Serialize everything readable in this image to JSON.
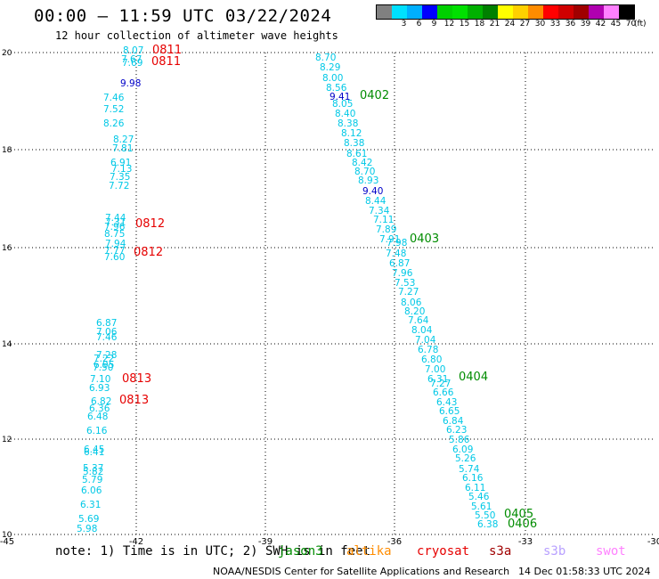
{
  "header": {
    "title": "00:00 – 11:59 UTC 03/22/2024",
    "subtitle": "12 hour collection of altimeter wave heights"
  },
  "legend": {
    "unit": "(ft)",
    "items": [
      {
        "label": "",
        "color": "#808080"
      },
      {
        "label": "3",
        "color": "#00e0ff"
      },
      {
        "label": "6",
        "color": "#00b0ff"
      },
      {
        "label": "9",
        "color": "#0000ff"
      },
      {
        "label": "12",
        "color": "#00d000"
      },
      {
        "label": "15",
        "color": "#00e000"
      },
      {
        "label": "18",
        "color": "#00b000"
      },
      {
        "label": "21",
        "color": "#008000"
      },
      {
        "label": "24",
        "color": "#ffff00"
      },
      {
        "label": "27",
        "color": "#ffd000"
      },
      {
        "label": "30",
        "color": "#ff8c00"
      },
      {
        "label": "33",
        "color": "#ff0000"
      },
      {
        "label": "36",
        "color": "#d00000"
      },
      {
        "label": "39",
        "color": "#a00000"
      },
      {
        "label": "42",
        "color": "#b000b0"
      },
      {
        "label": "45",
        "color": "#ff80ff"
      },
      {
        "label": "70",
        "color": "#000000"
      }
    ]
  },
  "map": {
    "x_ticks": [
      "-45",
      "-42",
      "-39",
      "-36",
      "-33",
      "-30"
    ],
    "y_ticks": [
      "20",
      "18",
      "16",
      "14",
      "12",
      "10"
    ],
    "colors": {
      "cyan": "#00c8e6",
      "blue": "#0000c8",
      "red": "#e60000",
      "green": "#008c00"
    },
    "track_a": {
      "values": [
        "8.07",
        "7.67",
        "7.69",
        "9.98",
        "7.46",
        "7.52",
        "8.26",
        "8.27",
        "7.81",
        "6.91",
        "7.13",
        "7.35",
        "7.72",
        "7.44",
        "7.31",
        "7.96",
        "8.75",
        "7.94",
        "7.77",
        "7.60",
        "6.87",
        "7.06",
        "7.46",
        "7.28",
        "7.22",
        "6.95",
        "7.50",
        "7.10",
        "6.93",
        "6.82",
        "6.36",
        "6.48",
        "6.16",
        "6.45",
        "6.41",
        "5.37",
        "5.82",
        "5.79",
        "6.06",
        "6.31",
        "5.69",
        "5.98"
      ]
    },
    "track_b": {
      "values": [
        "8.70",
        "8.29",
        "8.00",
        "8.56",
        "9.41",
        "8.05",
        "8.40",
        "8.38",
        "8.12",
        "8.38",
        "8.61",
        "8.42",
        "8.70",
        "8.93",
        "9.40",
        "8.44",
        "7.34",
        "7.11",
        "7.89",
        "7.91",
        "7.98",
        "7.48",
        "6.87",
        "7.96",
        "7.53",
        "7.27",
        "8.06",
        "8.20",
        "7.64",
        "8.04",
        "7.04",
        "6.78",
        "6.80",
        "7.00",
        "6.31",
        "7.27",
        "6.66",
        "6.43",
        "6.65",
        "6.84",
        "6.23",
        "5.86",
        "6.09",
        "5.26",
        "5.74",
        "6.16",
        "6.11",
        "5.46",
        "5.61",
        "5.50",
        "6.38"
      ]
    },
    "time_labels": [
      {
        "text": "0811",
        "side": "a"
      },
      {
        "text": "0811",
        "side": "a"
      },
      {
        "text": "0812",
        "side": "a"
      },
      {
        "text": "0812",
        "side": "a"
      },
      {
        "text": "0813",
        "side": "a"
      },
      {
        "text": "0813",
        "side": "a"
      },
      {
        "text": "0402",
        "side": "b"
      },
      {
        "text": "0403",
        "side": "b"
      },
      {
        "text": "0404",
        "side": "b"
      },
      {
        "text": "0405",
        "side": "b"
      },
      {
        "text": "0406",
        "side": "b"
      }
    ]
  },
  "note": {
    "prefix": "note: 1) Time is in UTC; 2) SWH is in feet",
    "satellites": [
      {
        "label": "jason3",
        "color": "#008c00"
      },
      {
        "label": "altika",
        "color": "#ff8c00"
      },
      {
        "label": "cryosat",
        "color": "#e60000"
      },
      {
        "label": "s3a",
        "color": "#a00000"
      },
      {
        "label": "s3b",
        "color": "#b8a0ff"
      },
      {
        "label": "swot",
        "color": "#ff80ff"
      }
    ]
  },
  "footer": {
    "credit": "NOAA/NESDIS Center for Satellite Applications and Research",
    "date": "14 Dec 01:58:33 UTC 2024"
  }
}
